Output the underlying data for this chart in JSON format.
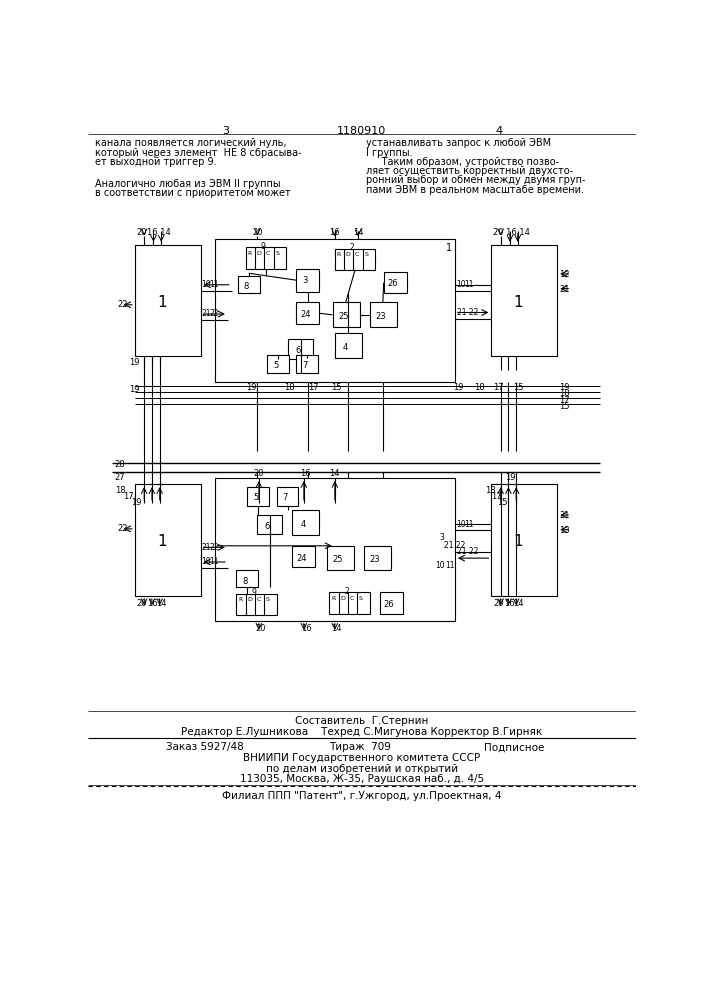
{
  "page_number_left": "3",
  "page_title": "1180910",
  "page_number_right": "4",
  "text_left": [
    "канала появляется логический нуль,",
    "который через элемент  НЕ 8 сбрасыва-",
    "ет выходной триггер 9."
  ],
  "text_left2": [
    "Аналогично любая из ЭВМ II группы",
    "в соответствии с приоритетом может"
  ],
  "text_right": [
    "устанавливать запрос к любой ЭВМ",
    "I группы.",
    "     Таким образом, устройство позво-",
    "ляет осуществить корректный двухсто-",
    "ронний выбор и обмен между двумя груп-",
    "пами ЭВМ в реальном масштабе времени."
  ],
  "footer_line1": "Составитель  Г.Стернин",
  "footer_line2": "Редактор Е.Лушникова    Техред С.Мигунова Корректор В.Гирняк",
  "footer_line3": "Заказ 5927/48            Тираж  709           Подписное",
  "footer_line4": "ВНИИПИ Государственного комитета СССР",
  "footer_line5": "по делам изобретений и открытий",
  "footer_line6": "113035, Москва, Ж-35, Раушская наб., д. 4/5",
  "footer_line7": "Филиал ППП \"Патент\", г.Ужгород, ул.Проектная, 4",
  "bg_color": "#ffffff",
  "line_color": "#000000",
  "text_color": "#000000"
}
